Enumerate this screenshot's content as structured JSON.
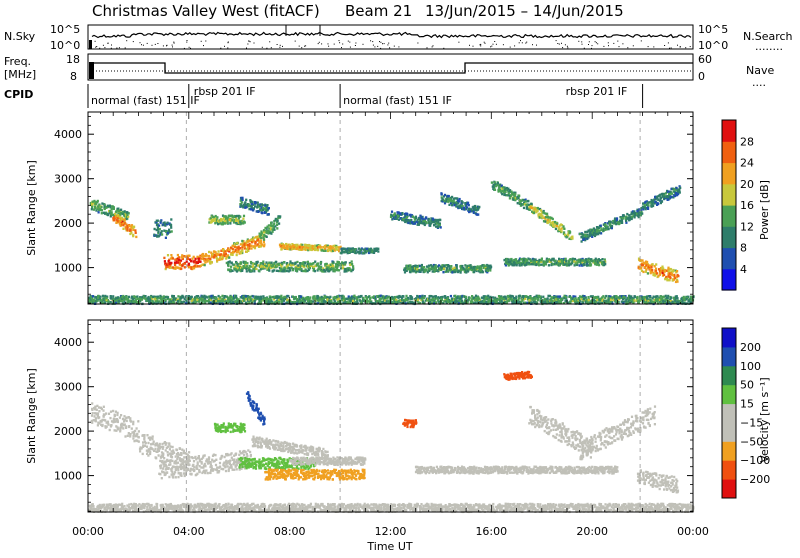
{
  "header": {
    "station": "Christmas Valley West (fitACF)",
    "beam": "Beam 21",
    "date_range": "13/Jun/2015 – 14/Jun/2015"
  },
  "sky_panel": {
    "left_label": "N.Sky",
    "right_label": "N.Search",
    "right_legend": "........",
    "ticks": [
      "10^5",
      "10^0"
    ]
  },
  "freq_panel": {
    "left_label_line1": "Freq.",
    "left_label_line2": "[MHz]",
    "left_ticks": [
      "18",
      "8"
    ],
    "right_label": "Nave",
    "right_legend": "....",
    "right_ticks": [
      "60",
      "0"
    ]
  },
  "cpid_panel": {
    "label": "CPID",
    "segments": [
      {
        "text": "normal (fast) 151 IF",
        "start_hour": 0.0,
        "end_hour": 4.0
      },
      {
        "text": "rbsp 201 IF",
        "start_hour": 4.0,
        "end_hour": 10.0
      },
      {
        "text": "normal (fast) 151 IF",
        "start_hour": 10.0,
        "end_hour": 22.0
      },
      {
        "text": "rbsp 201 IF",
        "start_hour": 22.0,
        "end_hour": 24.0
      }
    ]
  },
  "colors": {
    "power": [
      "#1010e8",
      "#1f4fb0",
      "#2e7d6a",
      "#4aa055",
      "#c8c83c",
      "#f0a020",
      "#f06010",
      "#e01010"
    ],
    "velocity": [
      "#e01010",
      "#f05010",
      "#f0a020",
      "#c0c0b8",
      "#c0c0b8",
      "#60c040",
      "#2e8a50",
      "#1f4fb0",
      "#1010c8"
    ]
  },
  "chart_data": [
    {
      "type": "heatmap",
      "title": "Power",
      "xlabel": "Time UT",
      "ylabel": "Slant Range [km]",
      "x_ticks": [
        "00:00",
        "04:00",
        "08:00",
        "12:00",
        "16:00",
        "20:00",
        "00:00"
      ],
      "x_range_hours": [
        0,
        24
      ],
      "ylim": [
        180,
        4500
      ],
      "y_ticks": [
        1000,
        2000,
        3000,
        4000
      ],
      "colorbar": {
        "label": "Power [dB]",
        "ticks": [
          "4",
          "8",
          "12",
          "16",
          "20",
          "24",
          "28"
        ],
        "range": [
          0,
          30
        ]
      },
      "grid": false,
      "features": [
        {
          "t0": 0.1,
          "t1": 1.6,
          "r0": 2450,
          "r1": 2150,
          "thick": 180,
          "level": 0.5
        },
        {
          "t0": 1.0,
          "t1": 1.9,
          "r0": 2150,
          "r1": 1800,
          "thick": 160,
          "level": 0.85
        },
        {
          "t0": 2.6,
          "t1": 3.3,
          "r0": 1900,
          "r1": 1900,
          "thick": 300,
          "level": 0.35
        },
        {
          "t0": 3.0,
          "t1": 4.5,
          "r0": 1150,
          "r1": 1150,
          "thick": 230,
          "level": 0.95
        },
        {
          "t0": 4.5,
          "t1": 7.0,
          "r0": 1200,
          "r1": 1650,
          "thick": 200,
          "level": 0.8
        },
        {
          "t0": 6.8,
          "t1": 7.6,
          "r0": 1700,
          "r1": 2100,
          "thick": 160,
          "level": 0.5
        },
        {
          "t0": 4.8,
          "t1": 6.2,
          "r0": 2100,
          "r1": 2100,
          "thick": 140,
          "level": 0.55
        },
        {
          "t0": 6.0,
          "t1": 7.2,
          "r0": 2500,
          "r1": 2300,
          "thick": 160,
          "level": 0.35
        },
        {
          "t0": 7.6,
          "t1": 10.0,
          "r0": 1500,
          "r1": 1450,
          "thick": 90,
          "level": 0.75
        },
        {
          "t0": 5.5,
          "t1": 10.5,
          "r0": 1050,
          "r1": 1050,
          "thick": 160,
          "level": 0.5
        },
        {
          "t0": 10.0,
          "t1": 11.5,
          "r0": 1400,
          "r1": 1400,
          "thick": 80,
          "level": 0.4
        },
        {
          "t0": 12.0,
          "t1": 14.0,
          "r0": 2200,
          "r1": 2000,
          "thick": 150,
          "level": 0.35
        },
        {
          "t0": 14.0,
          "t1": 15.5,
          "r0": 2600,
          "r1": 2300,
          "thick": 150,
          "level": 0.35
        },
        {
          "t0": 12.5,
          "t1": 16.0,
          "r0": 1000,
          "r1": 1000,
          "thick": 120,
          "level": 0.45
        },
        {
          "t0": 16.0,
          "t1": 17.5,
          "r0": 2900,
          "r1": 2400,
          "thick": 150,
          "level": 0.45
        },
        {
          "t0": 17.5,
          "t1": 19.2,
          "r0": 2400,
          "r1": 1700,
          "thick": 150,
          "level": 0.6
        },
        {
          "t0": 16.5,
          "t1": 20.5,
          "r0": 1150,
          "r1": 1150,
          "thick": 110,
          "level": 0.45
        },
        {
          "t0": 19.5,
          "t1": 22.0,
          "r0": 1700,
          "r1": 2300,
          "thick": 140,
          "level": 0.4
        },
        {
          "t0": 22.0,
          "t1": 23.5,
          "r0": 2400,
          "r1": 2800,
          "thick": 150,
          "level": 0.35
        },
        {
          "t0": 21.8,
          "t1": 23.4,
          "r0": 1100,
          "r1": 800,
          "thick": 200,
          "level": 0.8
        },
        {
          "t0": 0.0,
          "t1": 24.0,
          "r0": 300,
          "r1": 300,
          "thick": 130,
          "level": 0.45
        }
      ]
    },
    {
      "type": "heatmap",
      "title": "Velocity",
      "xlabel": "Time UT",
      "ylabel": "Slant Range [km]",
      "x_ticks": [
        "00:00",
        "04:00",
        "08:00",
        "12:00",
        "16:00",
        "20:00",
        "00:00"
      ],
      "x_range_hours": [
        0,
        24
      ],
      "ylim": [
        180,
        4500
      ],
      "y_ticks": [
        1000,
        2000,
        3000,
        4000
      ],
      "colorbar": {
        "label": "Velocity [m s⁻¹]",
        "ticks": [
          "200",
          "100",
          "50",
          "15",
          "−15",
          "−50",
          "−100",
          "−200"
        ],
        "range": [
          -250,
          250
        ]
      },
      "grid": false,
      "features": [
        {
          "t0": 0.1,
          "t1": 2.0,
          "r0": 2450,
          "r1": 2000,
          "thick": 350,
          "level": 0.0
        },
        {
          "t0": 2.0,
          "t1": 4.0,
          "r0": 1800,
          "r1": 1300,
          "thick": 350,
          "level": 0.0
        },
        {
          "t0": 2.8,
          "t1": 6.5,
          "r0": 1150,
          "r1": 1400,
          "thick": 300,
          "level": 0.0
        },
        {
          "t0": 5.0,
          "t1": 6.2,
          "r0": 2100,
          "r1": 2100,
          "thick": 140,
          "level": 40.0
        },
        {
          "t0": 6.3,
          "t1": 7.0,
          "r0": 2800,
          "r1": 2200,
          "thick": 160,
          "level": 180.0
        },
        {
          "t0": 6.5,
          "t1": 9.5,
          "r0": 1800,
          "r1": 1500,
          "thick": 160,
          "level": 0.0
        },
        {
          "t0": 6.0,
          "t1": 9.0,
          "r0": 1300,
          "r1": 1300,
          "thick": 180,
          "level": 40.0
        },
        {
          "t0": 7.0,
          "t1": 11.0,
          "r0": 1050,
          "r1": 1050,
          "thick": 160,
          "level": -60.0
        },
        {
          "t0": 8.0,
          "t1": 11.0,
          "r0": 1350,
          "r1": 1350,
          "thick": 120,
          "level": -40.0
        },
        {
          "t0": 12.5,
          "t1": 13.0,
          "r0": 2200,
          "r1": 2200,
          "thick": 120,
          "level": -150.0
        },
        {
          "t0": 16.5,
          "t1": 17.6,
          "r0": 3250,
          "r1": 3300,
          "thick": 100,
          "level": -150.0
        },
        {
          "t0": 17.5,
          "t1": 20.0,
          "r0": 2400,
          "r1": 1600,
          "thick": 300,
          "level": 0.0
        },
        {
          "t0": 19.5,
          "t1": 22.5,
          "r0": 1600,
          "r1": 2400,
          "thick": 300,
          "level": 0.0
        },
        {
          "t0": 13.0,
          "t1": 21.0,
          "r0": 1150,
          "r1": 1150,
          "thick": 110,
          "level": 0.0
        },
        {
          "t0": 21.8,
          "t1": 23.4,
          "r0": 1000,
          "r1": 800,
          "thick": 250,
          "level": 0.0
        },
        {
          "t0": 0.0,
          "t1": 24.0,
          "r0": 300,
          "r1": 300,
          "thick": 130,
          "level": -40.0
        }
      ]
    }
  ]
}
